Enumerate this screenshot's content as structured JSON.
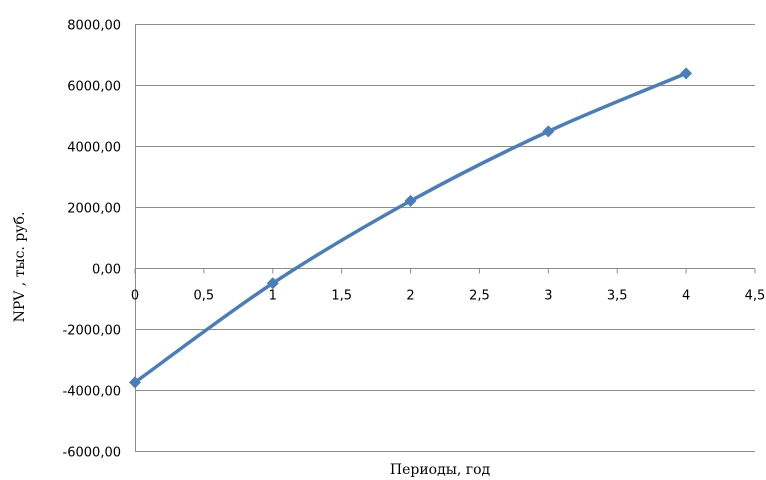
{
  "chart_data": {
    "type": "scatter",
    "title": "",
    "xlabel": "Периоды, год",
    "ylabel": "NPV , тыс. руб.",
    "xlim": [
      0,
      4.5
    ],
    "ylim": [
      -6000,
      8000
    ],
    "x_ticks": [
      0,
      0.5,
      1,
      1.5,
      2,
      2.5,
      3,
      3.5,
      4,
      4.5
    ],
    "x_tick_labels": [
      "0",
      "0,5",
      "1",
      "1,5",
      "2",
      "2,5",
      "3",
      "3,5",
      "4",
      "4,5"
    ],
    "y_ticks": [
      8000,
      6000,
      4000,
      2000,
      0,
      -2000,
      -4000,
      -6000
    ],
    "y_tick_labels": [
      "8000,00",
      "6000,00",
      "4000,00",
      "2000,00",
      "0,00",
      "-2000,00",
      "-4000,00",
      "-6000,00"
    ],
    "grid": "horizontal",
    "legend": "none",
    "line_style": "smooth",
    "color": "#4a7ebb",
    "series": [
      {
        "x": [
          0,
          1,
          2,
          3,
          4
        ],
        "y": [
          -3750,
          -500,
          2200,
          4480,
          6380
        ]
      }
    ]
  }
}
